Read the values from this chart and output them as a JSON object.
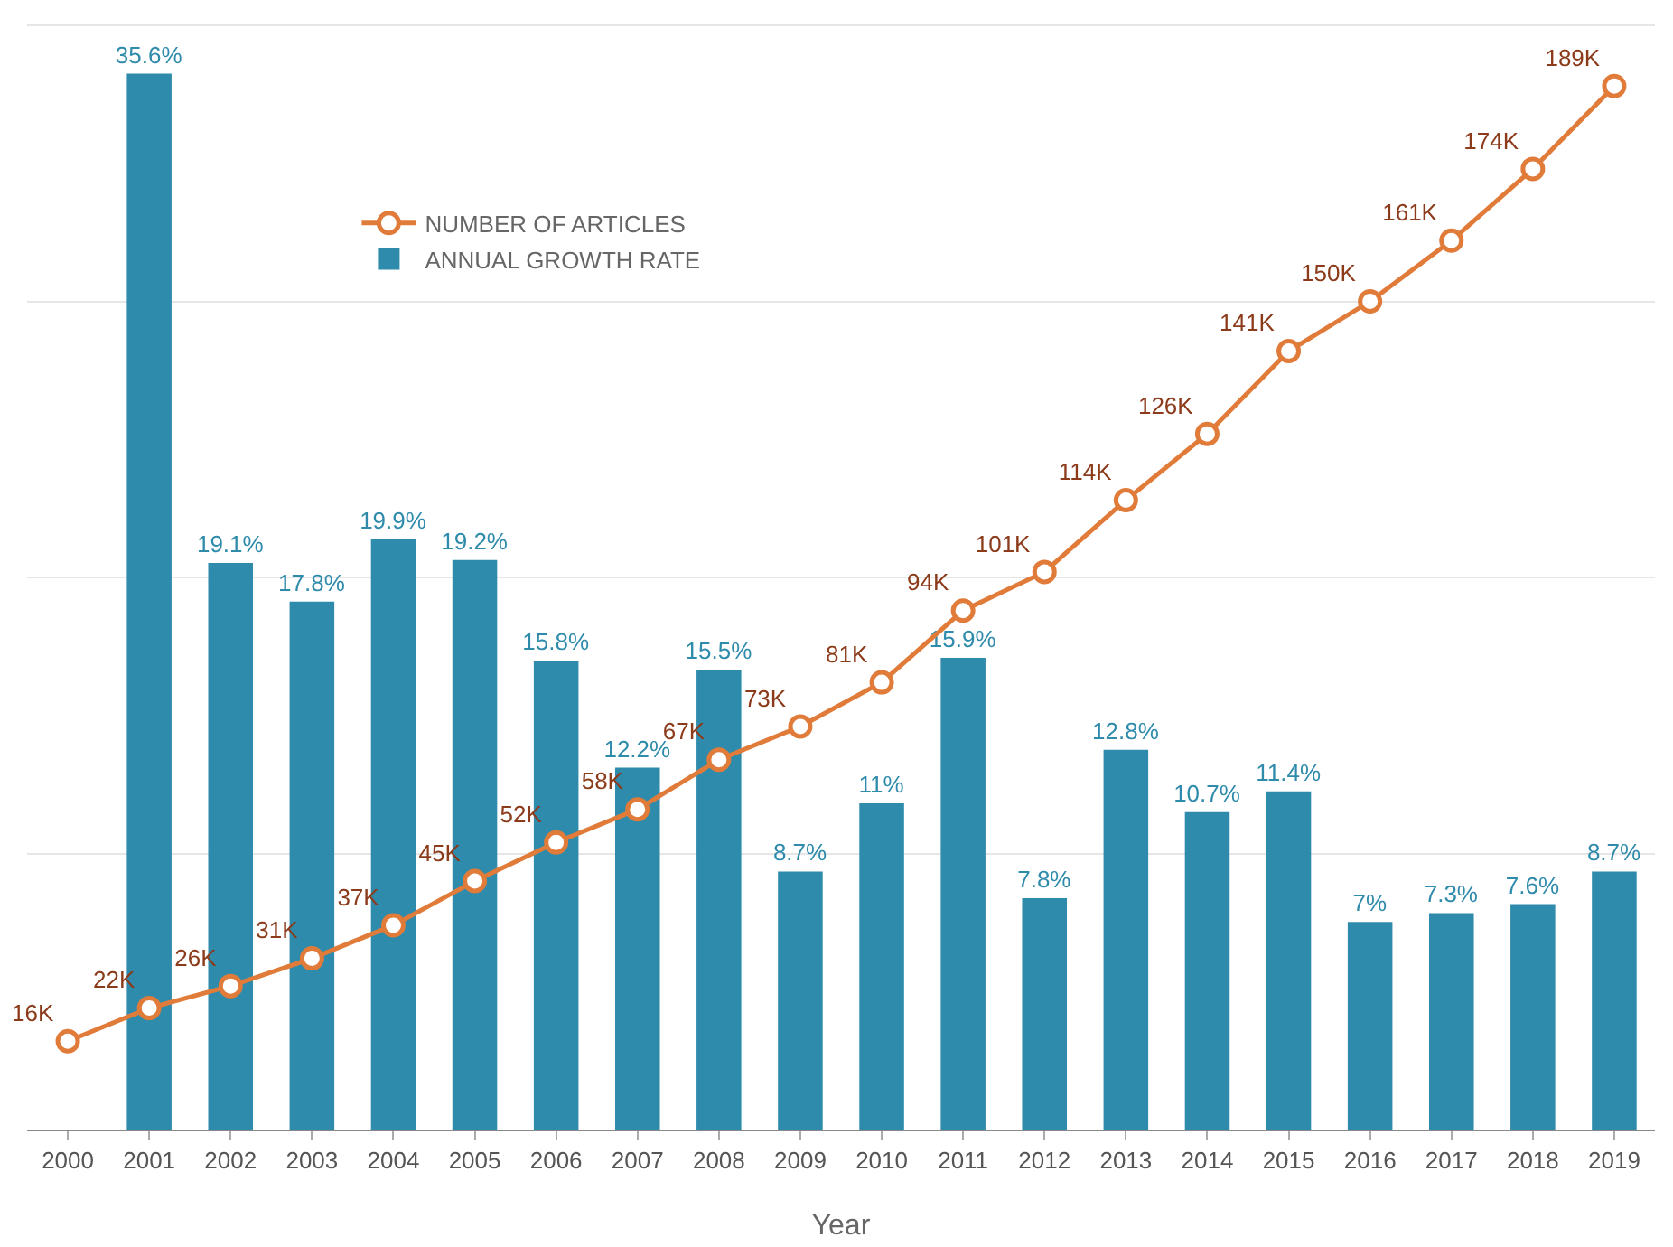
{
  "chart_data": {
    "type": "bar",
    "xlabel": "Year",
    "categories": [
      "2000",
      "2001",
      "2002",
      "2003",
      "2004",
      "2005",
      "2006",
      "2007",
      "2008",
      "2009",
      "2010",
      "2011",
      "2012",
      "2013",
      "2014",
      "2015",
      "2016",
      "2017",
      "2018",
      "2019"
    ],
    "series": [
      {
        "name": "NUMBER OF ARTICLES",
        "type": "line",
        "axis": "y2",
        "color": "#e07b39",
        "values": [
          16,
          22,
          26,
          31,
          37,
          45,
          52,
          58,
          67,
          73,
          81,
          94,
          101,
          114,
          126,
          141,
          150,
          161,
          174,
          189
        ],
        "value_labels": [
          "16K",
          "22K",
          "26K",
          "31K",
          "37K",
          "45K",
          "52K",
          "58K",
          "67K",
          "73K",
          "81K",
          "94K",
          "101K",
          "114K",
          "126K",
          "141K",
          "150K",
          "161K",
          "174K",
          "189K"
        ]
      },
      {
        "name": "ANNUAL GROWTH RATE",
        "color": "#2f8bab",
        "values": [
          null,
          35.6,
          19.1,
          17.8,
          19.9,
          19.2,
          15.8,
          12.2,
          15.5,
          8.7,
          11,
          15.9,
          7.8,
          12.8,
          10.7,
          11.4,
          7,
          7.3,
          7.6,
          8.7
        ],
        "value_labels": [
          null,
          "35.6%",
          "19.1%",
          "17.8%",
          "19.9%",
          "19.2%",
          "15.8%",
          "12.2%",
          "15.5%",
          "8.7%",
          "11%",
          "15.9%",
          "7.8%",
          "12.8%",
          "10.7%",
          "11.4%",
          "7%",
          "7.3%",
          "7.6%",
          "8.7%"
        ]
      }
    ],
    "y2ticks": [
      {
        "value": 50,
        "label": null
      },
      {
        "value": 100,
        "label": null
      },
      {
        "value": 150,
        "label": null
      },
      {
        "value": 200,
        "label": null
      }
    ],
    "grid": true,
    "legend": "top left",
    "marker": "circle",
    "line_style": "solid",
    "tick_labels": "x"
  }
}
